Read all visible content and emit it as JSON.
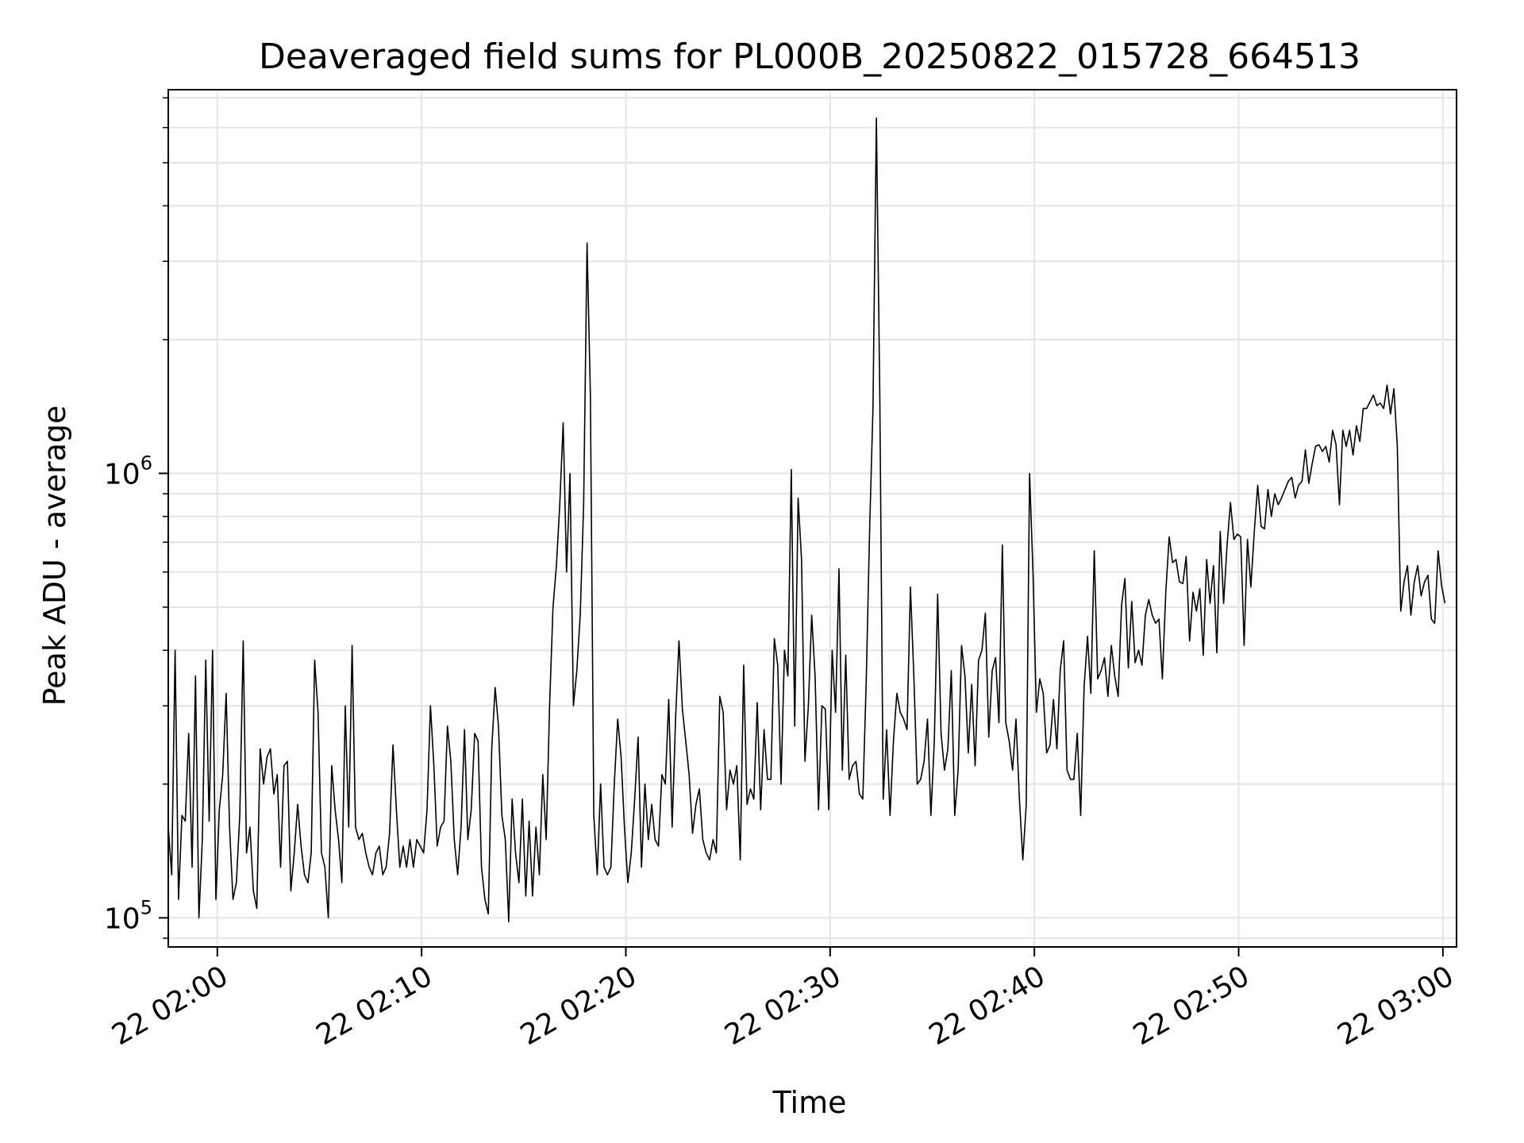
{
  "chart_data": {
    "type": "line",
    "title": "Deaveraged field sums for PL000B_20250822_015728_664513",
    "xlabel": "Time",
    "ylabel": "Peak ADU - average",
    "yscale": "log",
    "ylim": [
      86000,
      7300000
    ],
    "xlim": [
      "2025-08-22 01:57:36",
      "2025-08-22 03:00:40"
    ],
    "grid": true,
    "line_color": "#000000",
    "grid_color": "#e6e6e6",
    "x_ticks": [
      {
        "t": "2025-08-22 02:00:00",
        "label": "22 02:00"
      },
      {
        "t": "2025-08-22 02:10:00",
        "label": "22 02:10"
      },
      {
        "t": "2025-08-22 02:20:00",
        "label": "22 02:20"
      },
      {
        "t": "2025-08-22 02:30:00",
        "label": "22 02:30"
      },
      {
        "t": "2025-08-22 02:40:00",
        "label": "22 02:40"
      },
      {
        "t": "2025-08-22 02:50:00",
        "label": "22 02:50"
      },
      {
        "t": "2025-08-22 03:00:00",
        "label": "22 03:00"
      }
    ],
    "y_ticks": [
      {
        "value": 100000,
        "base": "10",
        "exp": "5"
      },
      {
        "value": 1000000,
        "base": "10",
        "exp": "6"
      }
    ],
    "series": [
      {
        "start": "2025-08-22 01:57:36",
        "interval_s": 10,
        "values": [
          160000,
          125000,
          400000,
          110000,
          170000,
          165000,
          260000,
          130000,
          350000,
          100000,
          150000,
          380000,
          165000,
          400000,
          110000,
          175000,
          210000,
          320000,
          160000,
          110000,
          120000,
          170000,
          420000,
          140000,
          160000,
          115000,
          105000,
          240000,
          200000,
          230000,
          240000,
          190000,
          210000,
          130000,
          220000,
          225000,
          115000,
          140000,
          180000,
          145000,
          125000,
          120000,
          140000,
          380000,
          290000,
          140000,
          130000,
          100000,
          220000,
          175000,
          150000,
          120000,
          300000,
          160000,
          410000,
          160000,
          150000,
          155000,
          140000,
          130000,
          125000,
          140000,
          145000,
          125000,
          130000,
          155000,
          245000,
          175000,
          130000,
          145000,
          130000,
          150000,
          130000,
          150000,
          145000,
          140000,
          175000,
          300000,
          220000,
          145000,
          160000,
          165000,
          270000,
          225000,
          150000,
          125000,
          160000,
          265000,
          150000,
          175000,
          260000,
          250000,
          130000,
          110000,
          102000,
          240000,
          330000,
          270000,
          170000,
          150000,
          98000,
          185000,
          140000,
          120000,
          185000,
          112000,
          165000,
          112000,
          160000,
          125000,
          210000,
          150000,
          300000,
          500000,
          620000,
          850000,
          1300000,
          600000,
          1000000,
          300000,
          360000,
          480000,
          850000,
          3300000,
          1500000,
          170000,
          125000,
          200000,
          130000,
          125000,
          130000,
          200000,
          280000,
          230000,
          160000,
          120000,
          140000,
          185000,
          255000,
          130000,
          200000,
          150000,
          180000,
          150000,
          145000,
          210000,
          200000,
          310000,
          160000,
          280000,
          420000,
          295000,
          250000,
          210000,
          155000,
          180000,
          195000,
          150000,
          140000,
          135000,
          150000,
          140000,
          315000,
          290000,
          175000,
          215000,
          200000,
          220000,
          135000,
          370000,
          180000,
          195000,
          185000,
          305000,
          175000,
          265000,
          205000,
          205000,
          425000,
          370000,
          200000,
          400000,
          350000,
          1020000,
          270000,
          880000,
          640000,
          225000,
          300000,
          480000,
          350000,
          175000,
          300000,
          295000,
          175000,
          400000,
          290000,
          610000,
          215000,
          390000,
          205000,
          220000,
          225000,
          190000,
          185000,
          340000,
          750000,
          1400000,
          6300000,
          1500000,
          185000,
          265000,
          170000,
          250000,
          320000,
          290000,
          280000,
          265000,
          555000,
          350000,
          200000,
          205000,
          225000,
          280000,
          170000,
          250000,
          535000,
          260000,
          215000,
          240000,
          360000,
          170000,
          215000,
          410000,
          350000,
          235000,
          335000,
          220000,
          380000,
          400000,
          485000,
          255000,
          360000,
          385000,
          275000,
          690000,
          275000,
          250000,
          215000,
          280000,
          185000,
          135000,
          180000,
          1000000,
          600000,
          290000,
          345000,
          320000,
          235000,
          245000,
          310000,
          240000,
          360000,
          420000,
          215000,
          205000,
          205000,
          260000,
          170000,
          330000,
          430000,
          320000,
          670000,
          345000,
          360000,
          385000,
          315000,
          410000,
          350000,
          315000,
          505000,
          580000,
          365000,
          515000,
          375000,
          400000,
          370000,
          480000,
          520000,
          480000,
          460000,
          470000,
          345000,
          540000,
          720000,
          630000,
          640000,
          570000,
          565000,
          650000,
          420000,
          540000,
          490000,
          550000,
          390000,
          640000,
          510000,
          620000,
          395000,
          740000,
          510000,
          690000,
          860000,
          710000,
          730000,
          720000,
          410000,
          710000,
          555000,
          740000,
          940000,
          760000,
          750000,
          920000,
          800000,
          900000,
          850000,
          880000,
          920000,
          960000,
          980000,
          880000,
          940000,
          960000,
          1130000,
          950000,
          1050000,
          1150000,
          1160000,
          1120000,
          1150000,
          1060000,
          1250000,
          1160000,
          850000,
          1250000,
          1150000,
          1250000,
          1100000,
          1280000,
          1180000,
          1400000,
          1400000,
          1450000,
          1500000,
          1420000,
          1440000,
          1400000,
          1580000,
          1360000,
          1550000,
          1150000,
          490000,
          570000,
          620000,
          480000,
          570000,
          620000,
          530000,
          570000,
          590000,
          470000,
          460000,
          670000,
          560000,
          510000
        ]
      }
    ]
  }
}
